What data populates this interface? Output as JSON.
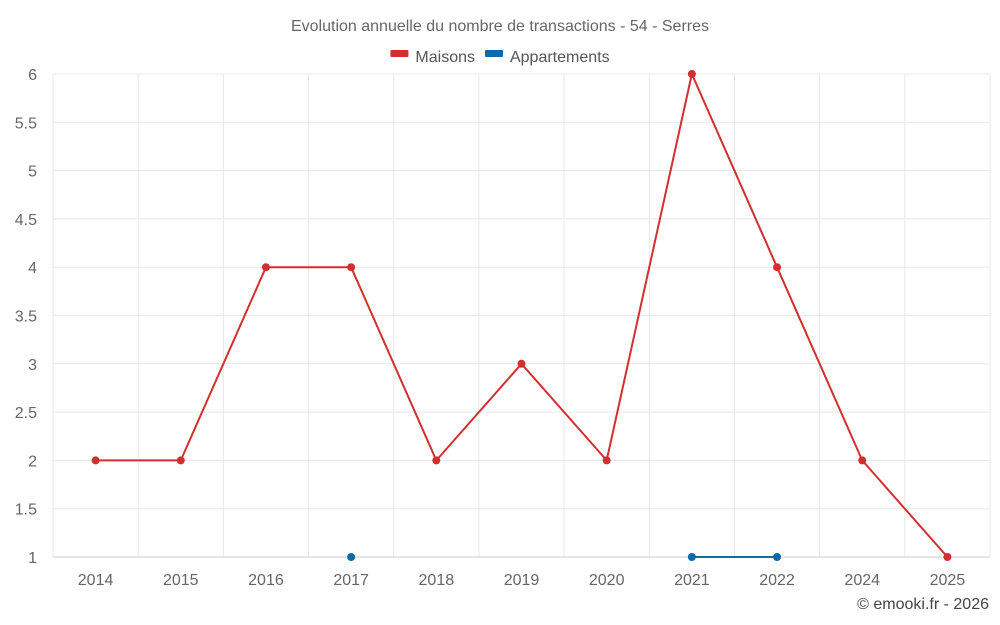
{
  "chart_data": {
    "type": "line",
    "title": "Evolution annuelle du nombre de transactions - 54 - Serres",
    "categories": [
      "2014",
      "2015",
      "2016",
      "2017",
      "2018",
      "2019",
      "2020",
      "2021",
      "2022",
      "2024",
      "2025"
    ],
    "ylim": [
      1,
      6
    ],
    "yticks": [
      "1",
      "1.5",
      "2",
      "2.5",
      "3",
      "3.5",
      "4",
      "4.5",
      "5",
      "5.5",
      "6"
    ],
    "grid": true,
    "legend_position": "top-center",
    "series": [
      {
        "name": "Maisons",
        "color": "#d32f2f",
        "values": [
          2,
          2,
          4,
          4,
          2,
          3,
          2,
          6,
          4,
          2,
          1
        ]
      },
      {
        "name": "Appartements",
        "color": "#0d6aa8",
        "values": [
          null,
          null,
          null,
          1,
          null,
          null,
          null,
          1,
          1,
          null,
          null
        ]
      }
    ]
  },
  "credit": "© emooki.fr - 2026"
}
